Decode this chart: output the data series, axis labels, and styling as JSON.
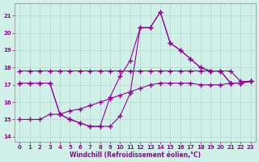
{
  "xlabel": "Windchill (Refroidissement éolien,°C)",
  "xlim": [
    -0.5,
    23.5
  ],
  "ylim": [
    13.7,
    21.7
  ],
  "yticks": [
    14,
    15,
    16,
    17,
    18,
    19,
    20,
    21
  ],
  "xticks": [
    0,
    1,
    2,
    3,
    4,
    5,
    6,
    7,
    8,
    9,
    10,
    11,
    12,
    13,
    14,
    15,
    16,
    17,
    18,
    19,
    20,
    21,
    22,
    23
  ],
  "background_color": "#d0f0e8",
  "grid_color": "#b0ddd0",
  "line_color": "#990099",
  "line1_x": [
    0,
    1,
    2,
    3,
    4,
    5,
    6,
    7,
    8,
    9,
    10,
    11,
    12,
    13,
    14,
    15,
    16,
    17,
    18,
    19,
    20,
    21,
    22,
    23
  ],
  "line1_y": [
    17.8,
    17.8,
    17.8,
    17.8,
    17.8,
    17.8,
    17.8,
    17.8,
    17.8,
    17.8,
    17.8,
    17.8,
    17.8,
    17.8,
    17.8,
    17.8,
    17.8,
    17.8,
    17.8,
    17.8,
    17.8,
    17.8,
    17.2,
    17.2
  ],
  "line2_x": [
    0,
    1,
    2,
    3,
    4,
    5,
    6,
    7,
    8,
    9,
    10,
    11,
    12,
    13,
    14,
    15,
    16,
    17,
    18,
    19,
    20,
    21,
    22,
    23
  ],
  "line2_y": [
    17.1,
    17.1,
    17.1,
    17.1,
    15.3,
    15.0,
    14.8,
    14.6,
    14.6,
    16.3,
    17.5,
    18.4,
    20.3,
    20.3,
    21.2,
    19.4,
    19.0,
    18.5,
    18.0,
    17.8,
    17.8,
    17.1,
    17.1,
    17.2
  ],
  "line3_x": [
    0,
    1,
    2,
    3,
    4,
    5,
    6,
    7,
    8,
    9,
    10,
    11,
    12,
    13,
    14,
    15,
    16,
    17,
    18,
    19,
    20,
    21,
    22,
    23
  ],
  "line3_y": [
    17.1,
    17.1,
    17.1,
    17.1,
    15.3,
    15.0,
    14.8,
    14.6,
    14.6,
    14.6,
    15.2,
    16.5,
    20.3,
    20.3,
    21.2,
    19.4,
    19.0,
    18.5,
    18.0,
    17.8,
    17.8,
    17.1,
    17.1,
    17.2
  ],
  "line4_x": [
    0,
    1,
    2,
    3,
    4,
    5,
    6,
    7,
    8,
    9,
    10,
    11,
    12,
    13,
    14,
    15,
    16,
    17,
    18,
    19,
    20,
    21,
    22,
    23
  ],
  "line4_y": [
    15.0,
    15.0,
    15.0,
    15.3,
    15.3,
    15.5,
    15.6,
    15.8,
    16.0,
    16.2,
    16.4,
    16.6,
    16.8,
    17.0,
    17.1,
    17.1,
    17.1,
    17.1,
    17.0,
    17.0,
    17.0,
    17.1,
    17.1,
    17.2
  ]
}
